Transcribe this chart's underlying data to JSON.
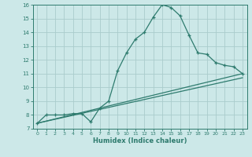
{
  "xlabel": "Humidex (Indice chaleur)",
  "ylabel": "",
  "bg_color": "#cce8e8",
  "line_color": "#2e7b6e",
  "grid_color": "#aacccc",
  "xlim": [
    -0.5,
    23.5
  ],
  "ylim": [
    7,
    16
  ],
  "xticks": [
    0,
    1,
    2,
    3,
    4,
    5,
    6,
    7,
    8,
    9,
    10,
    11,
    12,
    13,
    14,
    15,
    16,
    17,
    18,
    19,
    20,
    21,
    22,
    23
  ],
  "yticks": [
    7,
    8,
    9,
    10,
    11,
    12,
    13,
    14,
    15,
    16
  ],
  "line1_x": [
    0,
    1,
    2,
    3,
    4,
    5,
    6,
    7,
    8,
    9,
    10,
    11,
    12,
    13,
    14,
    15,
    16,
    17,
    18,
    19,
    20,
    21,
    22,
    23
  ],
  "line1_y": [
    7.4,
    8.0,
    8.0,
    8.0,
    8.1,
    8.1,
    7.5,
    8.5,
    9.0,
    11.2,
    12.5,
    13.5,
    14.0,
    15.1,
    16.0,
    15.8,
    15.2,
    13.8,
    12.5,
    12.4,
    11.8,
    11.6,
    11.5,
    11.0
  ],
  "line2_x": [
    0,
    23
  ],
  "line2_y": [
    7.4,
    11.0
  ],
  "line3_x": [
    0,
    23
  ],
  "line3_y": [
    7.4,
    10.7
  ]
}
